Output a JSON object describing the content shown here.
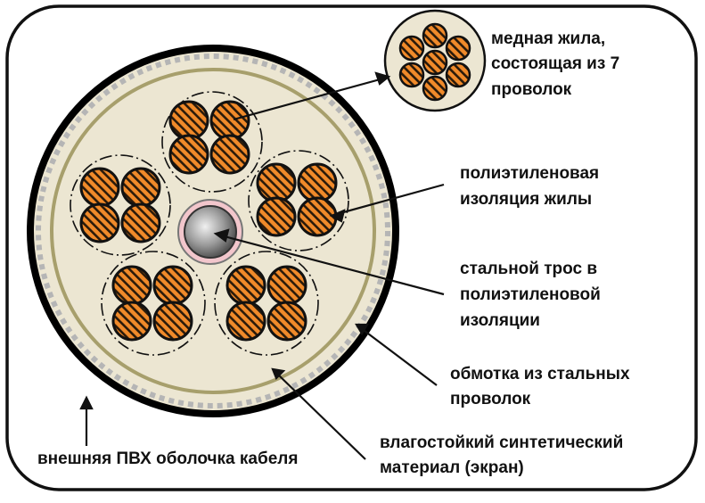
{
  "labels": {
    "copper_core": [
      "медная жила,",
      "состоящая из 7",
      "проволок"
    ],
    "pe_insulation": [
      "полиэтиленовая",
      "изоляция жилы"
    ],
    "steel_cable": [
      "стальной трос в",
      "полиэтиленовой",
      "изоляции"
    ],
    "steel_wrap": [
      "обмотка из стальных",
      "проволок"
    ],
    "screen": [
      "влагостойкий синтетический",
      "материал (экран)"
    ],
    "pvc_sheath": [
      "внешняя ПВХ оболочка кабеля"
    ]
  },
  "colors": {
    "sheath": "#000000",
    "filler": "#ece6d2",
    "screen_ring": "#a79f6c",
    "wrap_dash": "#b5b5b5",
    "copper": "#f08a2a",
    "pe_ring": "#f2c6cc",
    "steel": "#888888"
  }
}
